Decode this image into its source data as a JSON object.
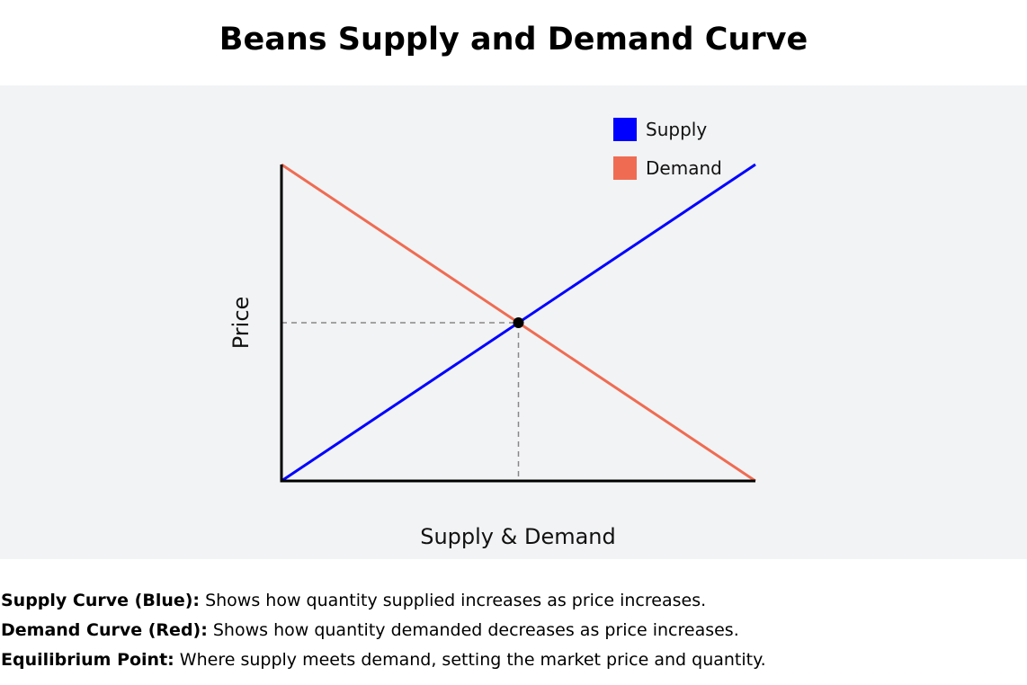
{
  "chart_data": {
    "type": "line",
    "title": "Beans Supply and Demand Curve",
    "xlabel": "Supply & Demand",
    "ylabel": "Price",
    "xlim": [
      0,
      10
    ],
    "ylim": [
      0,
      10
    ],
    "grid": false,
    "legend": "top-right",
    "series": [
      {
        "name": "Supply",
        "color": "#0000ff",
        "x": [
          0,
          10
        ],
        "y": [
          0,
          10
        ]
      },
      {
        "name": "Demand",
        "color": "#ef6c52",
        "x": [
          0,
          10
        ],
        "y": [
          10,
          0
        ]
      }
    ],
    "equilibrium": {
      "x": 5,
      "y": 5
    }
  },
  "notes": [
    {
      "label": "Supply Curve (Blue):",
      "text": " Shows how quantity supplied increases as price increases."
    },
    {
      "label": "Demand Curve (Red):",
      "text": " Shows how quantity demanded decreases as price increases."
    },
    {
      "label": "Equilibrium Point:",
      "text": " Where supply meets demand, setting the market price and quantity."
    }
  ]
}
